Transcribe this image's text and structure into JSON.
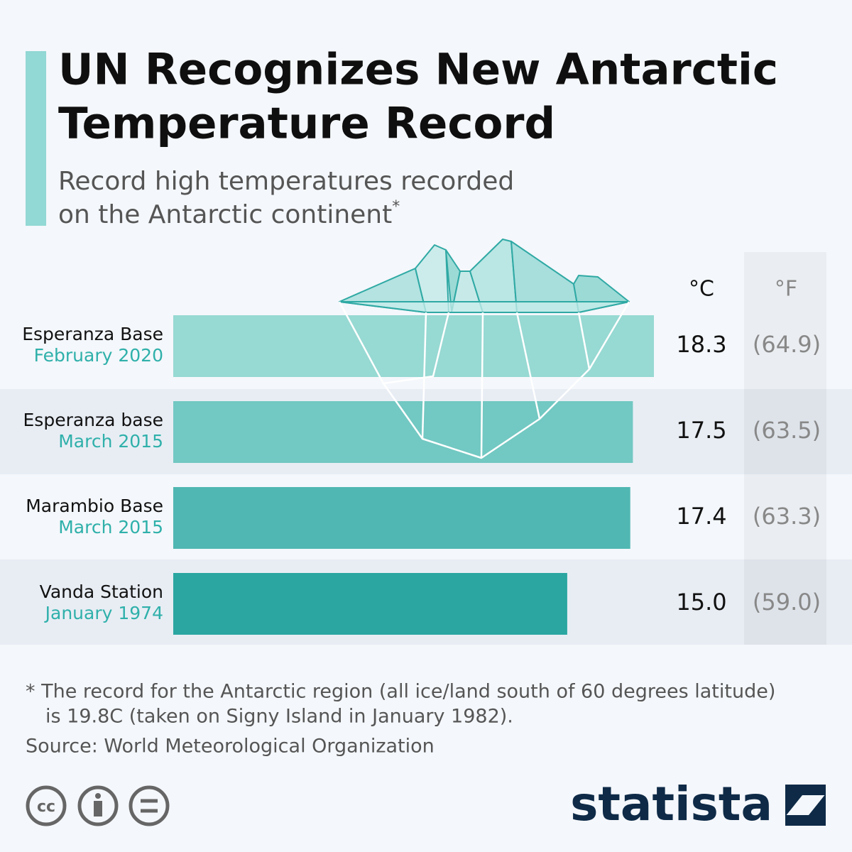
{
  "chart_data": {
    "type": "bar",
    "title": "UN Recognizes New Antarctic Temperature Record",
    "subtitle": "Record high temperatures recorded on the Antarctic continent",
    "subtitle_mark": "*",
    "categories": [
      "Esperanza Base",
      "Esperanza base",
      "Marambio Base",
      "Vanda Station"
    ],
    "dates": [
      "February 2020",
      "March 2015",
      "March 2015",
      "January 1974"
    ],
    "series": [
      {
        "name": "°C",
        "values": [
          18.3,
          17.5,
          17.4,
          15.0
        ],
        "value_labels": [
          "18.3",
          "17.5",
          "17.4",
          "15.0"
        ],
        "colors": [
          "#97d9d3",
          "#72c8c2",
          "#50b7b2",
          "#2ba6a1"
        ]
      },
      {
        "name": "°F",
        "values": [
          64.9,
          63.5,
          63.3,
          59.0
        ],
        "value_labels": [
          "(64.9)",
          "(63.5)",
          "(63.3)",
          "(59.0)"
        ]
      }
    ],
    "footnote": [
      "* The record for the Antarctic region (all ice/land south of 60 degrees latitude)",
      "is 19.8C (taken on Signy Island in January 1982)."
    ],
    "source": "Source: World Meteorological Organization",
    "brand": "statista"
  }
}
